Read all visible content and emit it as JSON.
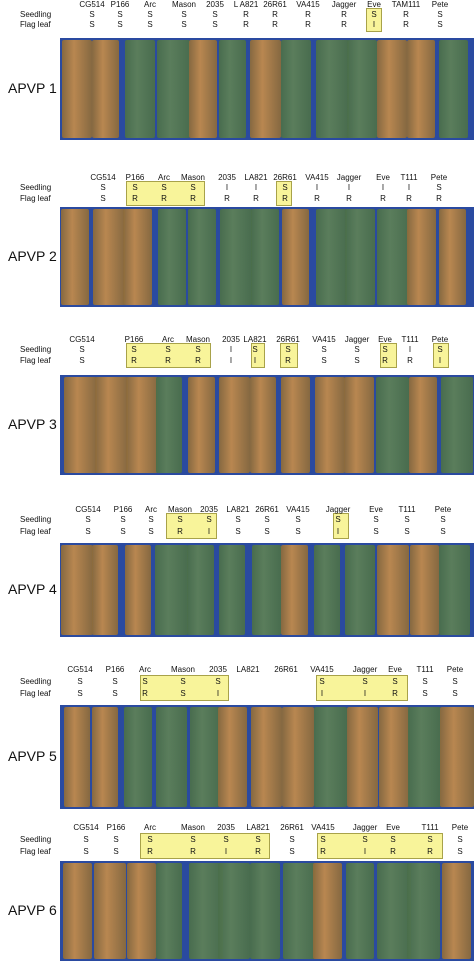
{
  "row_labels": {
    "seedling": "Seedling",
    "flag": "Flag leaf"
  },
  "panels": [
    {
      "label": "APVP 1",
      "varieties": [
        "CG514",
        "P166",
        "Arc",
        "Mason",
        "2035",
        "L A821",
        "26R61",
        "VA415",
        "Jagger",
        "Eve",
        "TAM111",
        "Pete"
      ],
      "seedling": [
        "S",
        "S",
        "S",
        "S",
        "S",
        "R",
        "R",
        "R",
        "R",
        "S",
        "R",
        "S"
      ],
      "flag": [
        "S",
        "S",
        "S",
        "S",
        "S",
        "R",
        "R",
        "R",
        "R",
        "I",
        "R",
        "S"
      ]
    },
    {
      "label": "APVP 2",
      "varieties": [
        "CG514",
        "P166",
        "Arc",
        "Mason",
        "2035",
        "LA821",
        "26R61",
        "VA415",
        "Jagger",
        "Eve",
        "T111",
        "Pete"
      ],
      "seedling": [
        "S",
        "S",
        "S",
        "S",
        "I",
        "I",
        "S",
        "I",
        "I",
        "I",
        "I",
        "S"
      ],
      "flag": [
        "S",
        "R",
        "R",
        "R",
        "R",
        "R",
        "R",
        "R",
        "R",
        "R",
        "R",
        "R"
      ]
    },
    {
      "label": "APVP 3",
      "varieties": [
        "CG514",
        "P166",
        "Arc",
        "Mason",
        "2035",
        "LA821",
        "26R61",
        "VA415",
        "Jagger",
        "Eve",
        "T111",
        "Pete"
      ],
      "seedling": [
        "S",
        "S",
        "S",
        "S",
        "I",
        "S",
        "S",
        "S",
        "S",
        "S",
        "I",
        "S"
      ],
      "flag": [
        "S",
        "R",
        "R",
        "R",
        "I",
        "I",
        "R",
        "S",
        "S",
        "R",
        "R",
        "I"
      ]
    },
    {
      "label": "APVP 4",
      "varieties": [
        "CG514",
        "P166",
        "Arc",
        "Mason",
        "2035",
        "LA821",
        "26R61",
        "VA415",
        "Jagger",
        "Eve",
        "T111",
        "Pete"
      ],
      "seedling": [
        "S",
        "S",
        "S",
        "S",
        "S",
        "S",
        "S",
        "S",
        "S",
        "S",
        "S",
        "S"
      ],
      "flag": [
        "S",
        "S",
        "S",
        "R",
        "I",
        "S",
        "S",
        "S",
        "I",
        "S",
        "S",
        "S"
      ]
    },
    {
      "label": "APVP 5",
      "varieties": [
        "CG514",
        "P166",
        "Arc",
        "Mason",
        "2035",
        "LA821",
        "26R61",
        "VA415",
        "Jagger",
        "Eve",
        "T111",
        "Pete"
      ],
      "seedling": [
        "S",
        "S",
        "S",
        "S",
        "S",
        "",
        "",
        "S",
        "S",
        "S",
        "S",
        "S"
      ],
      "flag": [
        "S",
        "S",
        "R",
        "S",
        "I",
        "",
        "",
        "I",
        "I",
        "R",
        "S",
        "S"
      ]
    },
    {
      "label": "APVP 6",
      "varieties": [
        "CG514",
        "P166",
        "Arc",
        "Mason",
        "2035",
        "LA821",
        "26R61",
        "VA415",
        "Jagger",
        "Eve",
        "T111",
        "Pete"
      ],
      "seedling": [
        "S",
        "S",
        "S",
        "S",
        "S",
        "S",
        "S",
        "S",
        "S",
        "S",
        "S",
        "S"
      ],
      "flag": [
        "S",
        "S",
        "R",
        "R",
        "I",
        "R",
        "S",
        "R",
        "I",
        "R",
        "R",
        "S"
      ]
    }
  ],
  "colors": {
    "highlight": "#f8f49a",
    "background": "#2a4aa0",
    "green_leaf": "#5d8058",
    "rust_leaf": "#c08a4c"
  }
}
